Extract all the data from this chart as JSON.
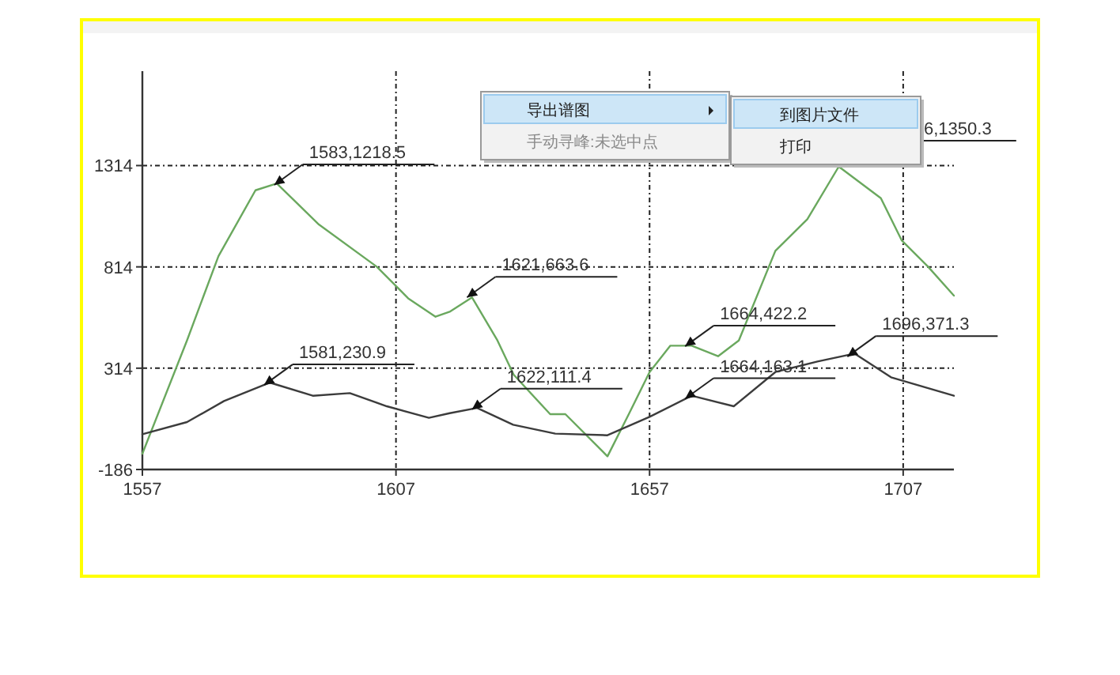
{
  "chart_data": {
    "type": "line",
    "xlim": [
      1557,
      1717
    ],
    "ylim": [
      -186,
      1780
    ],
    "xticks": [
      1557,
      1607,
      1657,
      1707
    ],
    "yticks": [
      -186,
      314,
      814,
      1314
    ],
    "grid": true,
    "line_style": "solid",
    "series": [
      {
        "color": "#6aa85e",
        "x": [
          1557,
          1565.8,
          1572,
          1579.3,
          1583.5,
          1591.8,
          1603.2,
          1609.4,
          1614.8,
          1617.7,
          1622,
          1627,
          1630.2,
          1637.4,
          1640.4,
          1648.7,
          1652.9,
          1657,
          1661.1,
          1665.3,
          1670.5,
          1674.6,
          1681.8,
          1688.1,
          1694.3,
          1702.6,
          1706.7,
          1711.9,
          1717
        ],
        "values": [
          -108,
          451,
          867,
          1192,
          1226,
          1023,
          815,
          659,
          568,
          594,
          663,
          451,
          282,
          87,
          87,
          -121,
          87,
          295,
          425,
          425,
          373,
          451,
          893,
          1049,
          1309,
          1153,
          945,
          815,
          672
        ]
      },
      {
        "color": "#3c3c3c",
        "x": [
          1557,
          1565.8,
          1573.1,
          1582.1,
          1590.6,
          1597.9,
          1605.2,
          1613.5,
          1617.6,
          1623,
          1630.1,
          1638.4,
          1648.7,
          1657,
          1665.3,
          1673.6,
          1681.8,
          1690.1,
          1697.4,
          1704.6,
          1717
        ],
        "values": [
          -12,
          48,
          152,
          243,
          178,
          191,
          126,
          69,
          92,
          118,
          35,
          -9,
          -17,
          74,
          178,
          126,
          295,
          347,
          386,
          269,
          178
        ]
      }
    ],
    "annotations": [
      {
        "text": "1583,1218.5",
        "x": 1583,
        "y": 1218.5
      },
      {
        "text": "1621,663.6",
        "x": 1621,
        "y": 663.6
      },
      {
        "text": "1664,422.2",
        "x": 1664,
        "y": 422.2
      },
      {
        "text": "1581,230.9",
        "x": 1581,
        "y": 230.9
      },
      {
        "text": "1622,111.4",
        "x": 1622,
        "y": 111.4
      },
      {
        "text": "1664,163.1",
        "x": 1664,
        "y": 163.1
      },
      {
        "text": "1696,371.3",
        "x": 1696,
        "y": 371.3
      },
      "导出谱图",
      "手动寻峰:未选中点",
      "到图片文件",
      "打印",
      "6,1350.3"
    ]
  }
}
